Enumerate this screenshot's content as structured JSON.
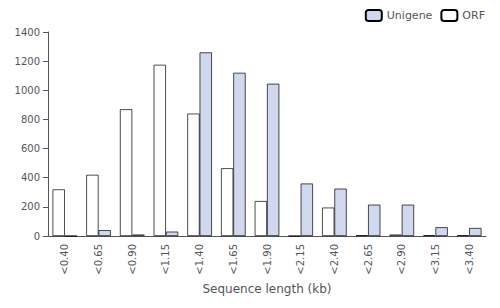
{
  "chart_data": {
    "type": "bar",
    "xlabel": "Sequence length (kb)",
    "categories": [
      "<0.40",
      "<0.65",
      "<0.90",
      "<1.15",
      "<1.40",
      "<1.65",
      "<1.90",
      "<2.15",
      "<2.40",
      "<2.65",
      "<2.90",
      "<3.15",
      "<3.40"
    ],
    "series": [
      {
        "name": "ORF",
        "color": "#ffffff",
        "values": [
          320,
          420,
          870,
          1175,
          840,
          465,
          240,
          0,
          195,
          5,
          10,
          5,
          5
        ]
      },
      {
        "name": "Unigene",
        "color": "#d0d8f0",
        "values": [
          0,
          40,
          10,
          30,
          1260,
          1120,
          1045,
          360,
          325,
          215,
          215,
          60,
          55
        ]
      }
    ],
    "ylim": [
      0,
      1400
    ],
    "yticks": [
      0,
      200,
      400,
      600,
      800,
      1000,
      1200,
      1400
    ],
    "grid": false,
    "legend": "upper right"
  }
}
